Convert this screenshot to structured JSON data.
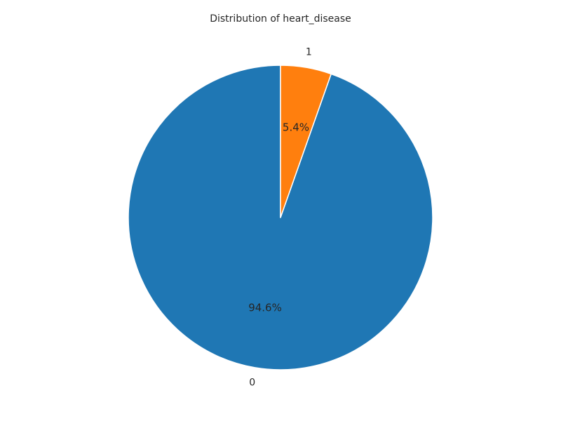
{
  "chart_data": {
    "type": "pie",
    "title": "Distribution of heart_disease",
    "slices": [
      {
        "label": "0",
        "value": 94.6,
        "pct_label": "94.6%",
        "color": "#1f77b4"
      },
      {
        "label": "1",
        "value": 5.4,
        "pct_label": "5.4%",
        "color": "#ff7f0e"
      }
    ],
    "start_angle_deg": 90,
    "direction": "counterclockwise",
    "edge_color": "#ffffff"
  }
}
